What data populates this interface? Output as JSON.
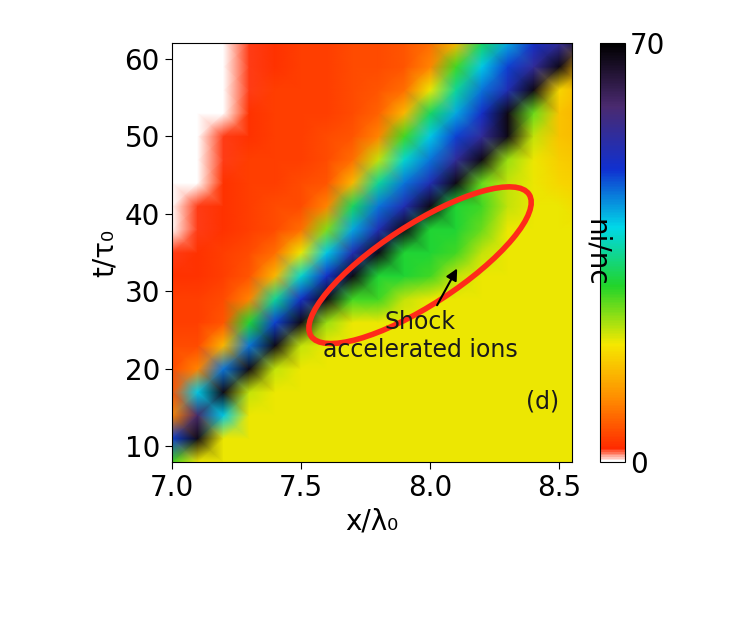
{
  "chart_data": {
    "type": "heatmap",
    "x_label": "x/λ₀",
    "y_label": "t/τ₀",
    "x": [
      7.0,
      7.1,
      7.2,
      7.3,
      7.4,
      7.5,
      7.6,
      7.7,
      7.8,
      7.9,
      8.0,
      8.1,
      8.2,
      8.3,
      8.4,
      8.5,
      8.6
    ],
    "y": [
      8,
      11,
      14,
      17,
      20,
      23,
      26,
      29,
      32,
      35,
      38,
      41,
      44,
      47,
      50,
      53,
      56,
      59,
      62
    ],
    "cells": [
      [
        28,
        20,
        20,
        20,
        20,
        20,
        20,
        20,
        20,
        20,
        20,
        20,
        20,
        20,
        20,
        20,
        20
      ],
      [
        48,
        68,
        20,
        20,
        20,
        20,
        20,
        20,
        20,
        20,
        20,
        20,
        20,
        20,
        20,
        20,
        20
      ],
      [
        10,
        60,
        40,
        20,
        20,
        20,
        20,
        20,
        20,
        20,
        20,
        20,
        20,
        20,
        20,
        20,
        20
      ],
      [
        6,
        40,
        68,
        22,
        20,
        20,
        20,
        20,
        20,
        20,
        20,
        20,
        20,
        20,
        20,
        20,
        20
      ],
      [
        5,
        10,
        45,
        68,
        22,
        20,
        20,
        20,
        20,
        20,
        20,
        20,
        20,
        20,
        20,
        20,
        20
      ],
      [
        5,
        5,
        15,
        45,
        68,
        22,
        20,
        20,
        20,
        20,
        20,
        20,
        20,
        20,
        20,
        20,
        20
      ],
      [
        4,
        4,
        6,
        30,
        48,
        68,
        24,
        20,
        20,
        20,
        20,
        20,
        20,
        20,
        20,
        20,
        20
      ],
      [
        4,
        4,
        5,
        10,
        35,
        50,
        68,
        28,
        28,
        22,
        20,
        20,
        20,
        20,
        20,
        20,
        20
      ],
      [
        3,
        3,
        4,
        6,
        15,
        38,
        50,
        68,
        30,
        30,
        28,
        22,
        20,
        20,
        20,
        20,
        20
      ],
      [
        2,
        3,
        4,
        5,
        8,
        20,
        40,
        52,
        68,
        30,
        30,
        28,
        22,
        20,
        20,
        20,
        20
      ],
      [
        0,
        2,
        3,
        4,
        5,
        8,
        25,
        42,
        52,
        68,
        30,
        30,
        26,
        20,
        20,
        20,
        20
      ],
      [
        0,
        2,
        3,
        4,
        5,
        5,
        10,
        32,
        45,
        52,
        68,
        30,
        28,
        22,
        20,
        20,
        18
      ],
      [
        0,
        0,
        3,
        4,
        4,
        5,
        6,
        15,
        35,
        45,
        52,
        68,
        26,
        22,
        20,
        18,
        17
      ],
      [
        0,
        0,
        2,
        4,
        4,
        4,
        5,
        8,
        22,
        38,
        45,
        55,
        68,
        24,
        20,
        17,
        16
      ],
      [
        0,
        0,
        2,
        3,
        4,
        4,
        5,
        6,
        10,
        28,
        40,
        48,
        55,
        68,
        22,
        16,
        15
      ],
      [
        0,
        0,
        0,
        3,
        4,
        4,
        4,
        5,
        7,
        15,
        32,
        42,
        50,
        68,
        26,
        16,
        14
      ],
      [
        0,
        0,
        0,
        2,
        4,
        4,
        4,
        5,
        6,
        8,
        20,
        35,
        45,
        52,
        68,
        18,
        14
      ],
      [
        0,
        0,
        0,
        2,
        3,
        4,
        4,
        5,
        5,
        6,
        10,
        28,
        40,
        48,
        55,
        68,
        15
      ],
      [
        0,
        0,
        0,
        2,
        3,
        4,
        4,
        5,
        5,
        6,
        8,
        15,
        32,
        42,
        50,
        55,
        68
      ]
    ],
    "xlim": [
      7.0,
      8.55
    ],
    "ylim": [
      8,
      62
    ],
    "xticks": [
      {
        "value": 7.0,
        "label": "7.0"
      },
      {
        "value": 7.5,
        "label": "7.5"
      },
      {
        "value": 8.0,
        "label": "8.0"
      },
      {
        "value": 8.5,
        "label": "8.5"
      }
    ],
    "yticks": [
      10,
      20,
      30,
      40,
      50,
      60
    ],
    "colorbar": {
      "label": "ni/nc",
      "range": [
        0,
        70
      ],
      "ticks": [
        0,
        70
      ]
    },
    "annotations": [
      "Shock\naccelerated ions",
      "(d)"
    ]
  }
}
